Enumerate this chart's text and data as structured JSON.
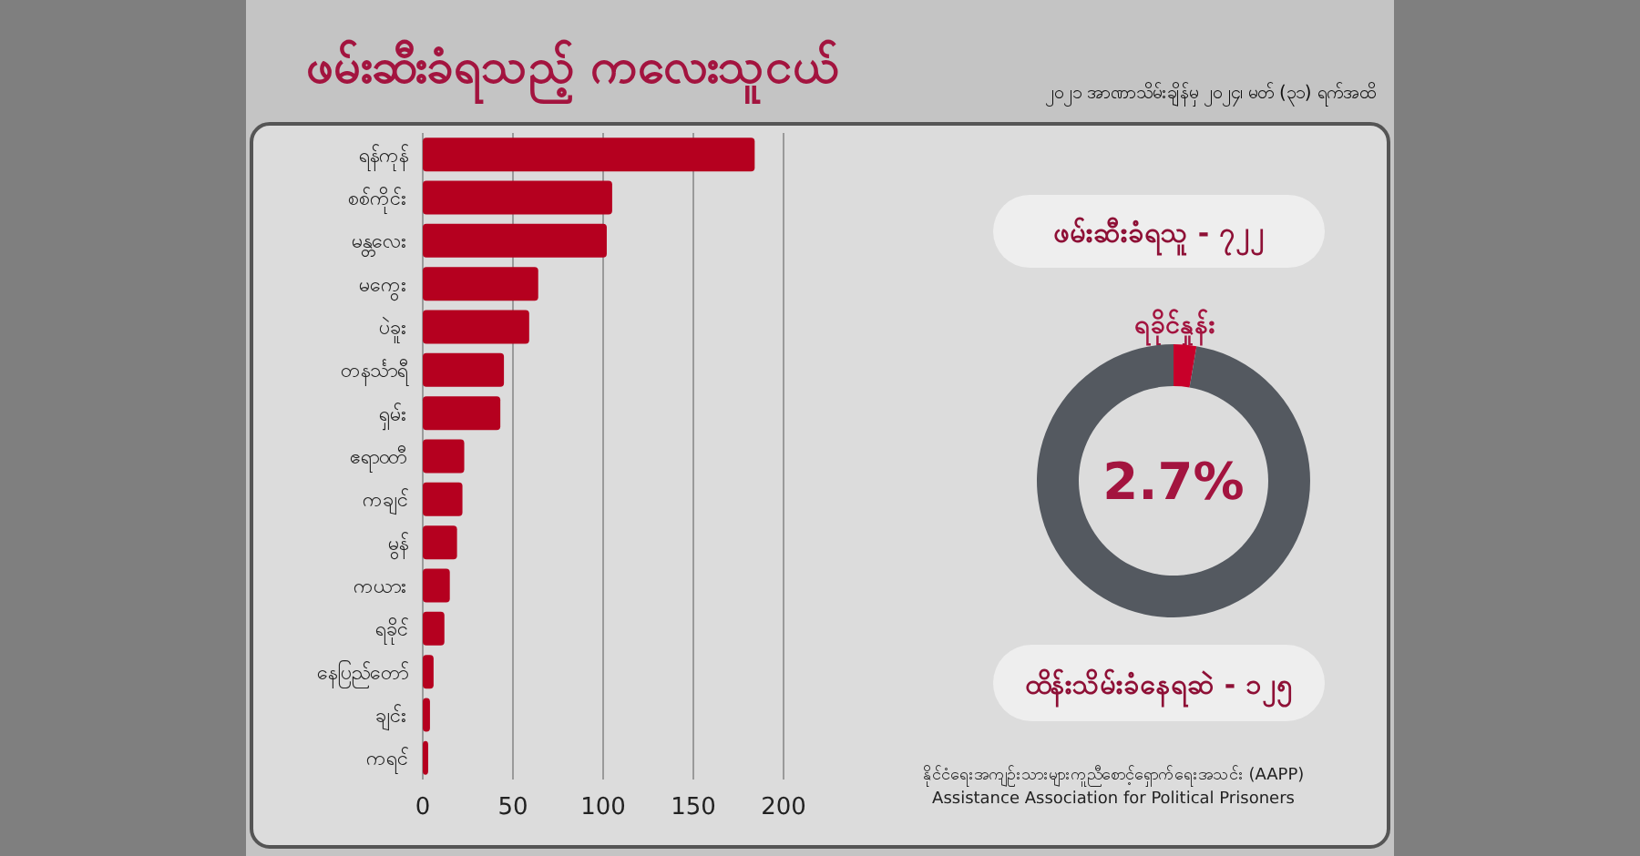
{
  "chart_data": [
    {
      "type": "bar",
      "orientation": "horizontal",
      "title": "ဖမ်းဆီးခံရသည့် ကလေးသူငယ်",
      "categories": [
        "ရန်ကုန်",
        "စစ်ကိုင်း",
        "မန္တလေး",
        "မကွေး",
        "ပဲခူး",
        "တနင်္သာရီ",
        "ရှမ်း",
        "ဧရာဝတီ",
        "ကချင်",
        "မွန်",
        "ကယား",
        "ရခိုင်",
        "နေပြည်တော်",
        "ချင်း",
        "ကရင်"
      ],
      "values": [
        184,
        105,
        102,
        64,
        59,
        45,
        43,
        23,
        22,
        19,
        15,
        12,
        6,
        4,
        3
      ],
      "color": "#b5001f",
      "xlim": [
        0,
        200
      ],
      "xticks": [
        0,
        50,
        100,
        150,
        200
      ],
      "grid": "x"
    },
    {
      "type": "donut",
      "title": "ရခိုင်နှုန်း",
      "subtitle": "၂၀၂၁ အာဏာသိမ်းချိန်မှ ၂၀၂၄၊ မတ် (၃၁) ရက်အထိ",
      "categories": [
        null,
        null
      ],
      "values": [
        2.7,
        97.3
      ],
      "colors": [
        "#c8002a",
        "#545960"
      ],
      "annotations": [
        "2.7%",
        "ဖမ်းဆီးခံရသူ - ၇၂၂",
        "ထိန်းသိမ်းခံနေရဆဲ - ၁၂၅",
        "နိုင်ငံရေးအကျဉ်းသားများကူညီစောင့်ရှောက်ရေးအသင်း (AAPP)",
        "Assistance Association for Political Prisoners"
      ]
    }
  ]
}
